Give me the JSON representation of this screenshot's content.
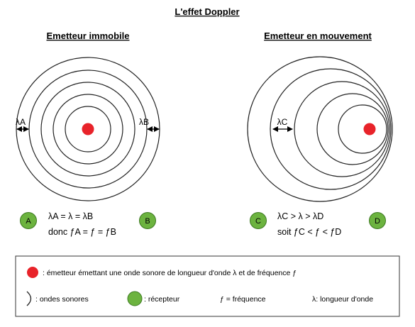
{
  "title": "L'effet Doppler",
  "left_panel": {
    "heading": "Emetteur immobile",
    "wavelength_left": "λA",
    "wavelength_right": "λB",
    "receiver_left": "A",
    "receiver_right": "B",
    "eq_line1": "λA = λ = λB",
    "eq_line2": "donc ƒA = ƒ = ƒB"
  },
  "right_panel": {
    "heading": "Emetteur en mouvement",
    "wavelength_label": "λC",
    "receiver_left": "C",
    "receiver_right": "D",
    "eq_line1": "λC > λ > λD",
    "eq_line2": "soit ƒC < ƒ < ƒD"
  },
  "legend": {
    "emitter_text": ": émetteur émettant une onde sonore de longueur d'onde λ et de fréquence ƒ",
    "waves_text": ": ondes sonores",
    "receiver_text": ": récepteur",
    "frequency_text": "ƒ = fréquence",
    "wavelength_text": "λ: longueur d'onde"
  },
  "colors": {
    "emitter": "#e8232a",
    "receiver_fill": "#6cb33f",
    "receiver_stroke": "#3d7a22",
    "stroke": "#222222"
  }
}
